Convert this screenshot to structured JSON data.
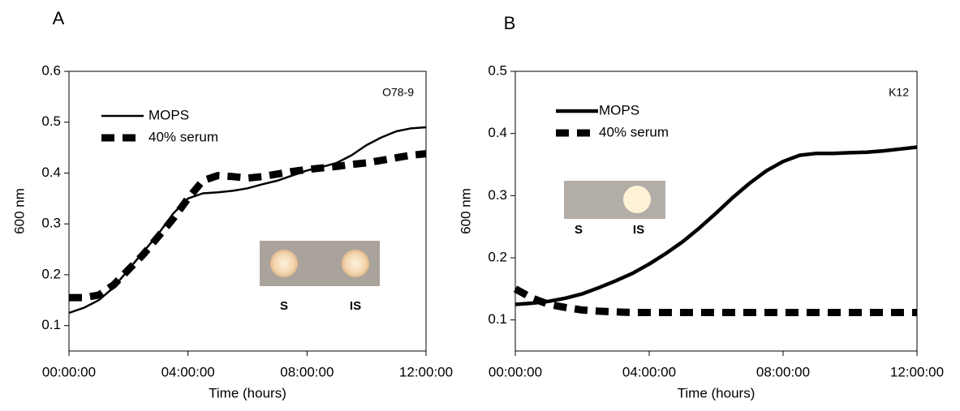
{
  "chart_data": [
    {
      "type": "line",
      "panel": "A",
      "annotation": "O78-9",
      "x_label": "Time (hours)",
      "y_label": "600 nm",
      "x": [
        0,
        0.5,
        1,
        1.5,
        2,
        2.5,
        3,
        3.5,
        4,
        4.5,
        5,
        5.5,
        6,
        6.5,
        7,
        7.5,
        8,
        8.5,
        9,
        9.5,
        10,
        10.5,
        11,
        11.5,
        12
      ],
      "series": [
        {
          "name": "MOPS",
          "color": "#000000",
          "values": [
            0.125,
            0.135,
            0.15,
            0.175,
            0.21,
            0.245,
            0.28,
            0.32,
            0.35,
            0.36,
            0.362,
            0.365,
            0.37,
            0.378,
            0.385,
            0.395,
            0.405,
            0.412,
            0.42,
            0.435,
            0.455,
            0.47,
            0.482,
            0.488,
            0.49
          ]
        },
        {
          "name": "40% serum",
          "color": "#000000",
          "values": [
            0.155,
            0.155,
            0.16,
            0.18,
            0.21,
            0.24,
            0.275,
            0.31,
            0.35,
            0.385,
            0.395,
            0.393,
            0.39,
            0.393,
            0.398,
            0.403,
            0.407,
            0.41,
            0.413,
            0.417,
            0.42,
            0.425,
            0.43,
            0.435,
            0.438
          ]
        }
      ],
      "xlim": [
        0,
        12
      ],
      "xticks": [
        {
          "value": 0,
          "label": "00:00:00"
        },
        {
          "value": 4,
          "label": "04:00:00"
        },
        {
          "value": 8,
          "label": "08:00:00"
        },
        {
          "value": 12,
          "label": "12:00:00"
        }
      ],
      "ylim": [
        0.05,
        0.6
      ],
      "yticks": [
        0.1,
        0.2,
        0.3,
        0.4,
        0.5,
        0.6
      ],
      "inset_labels": [
        "S",
        "IS"
      ]
    },
    {
      "type": "line",
      "panel": "B",
      "annotation": "K12",
      "x_label": "Time (hours)",
      "y_label": "600 nm",
      "x": [
        0,
        0.5,
        1,
        1.5,
        2,
        2.5,
        3,
        3.5,
        4,
        4.5,
        5,
        5.5,
        6,
        6.5,
        7,
        7.5,
        8,
        8.5,
        9,
        9.5,
        10,
        10.5,
        11,
        11.5,
        12
      ],
      "series": [
        {
          "name": "MOPS",
          "color": "#000000",
          "values": [
            0.125,
            0.127,
            0.13,
            0.135,
            0.142,
            0.152,
            0.163,
            0.175,
            0.19,
            0.207,
            0.226,
            0.248,
            0.272,
            0.297,
            0.32,
            0.34,
            0.355,
            0.365,
            0.368,
            0.368,
            0.369,
            0.37,
            0.372,
            0.375,
            0.378
          ]
        },
        {
          "name": "40% serum",
          "color": "#000000",
          "values": [
            0.15,
            0.135,
            0.125,
            0.12,
            0.116,
            0.114,
            0.113,
            0.112,
            0.112,
            0.112,
            0.112,
            0.112,
            0.112,
            0.112,
            0.112,
            0.112,
            0.112,
            0.112,
            0.112,
            0.112,
            0.112,
            0.112,
            0.112,
            0.112,
            0.112
          ]
        }
      ],
      "xlim": [
        0,
        12
      ],
      "xticks": [
        {
          "value": 0,
          "label": "00:00:00"
        },
        {
          "value": 4,
          "label": "04:00:00"
        },
        {
          "value": 8,
          "label": "08:00:00"
        },
        {
          "value": 12,
          "label": "12:00:00"
        }
      ],
      "ylim": [
        0.05,
        0.5
      ],
      "yticks": [
        0.1,
        0.2,
        0.3,
        0.4,
        0.5
      ],
      "inset_labels": [
        "S",
        "IS"
      ]
    }
  ]
}
